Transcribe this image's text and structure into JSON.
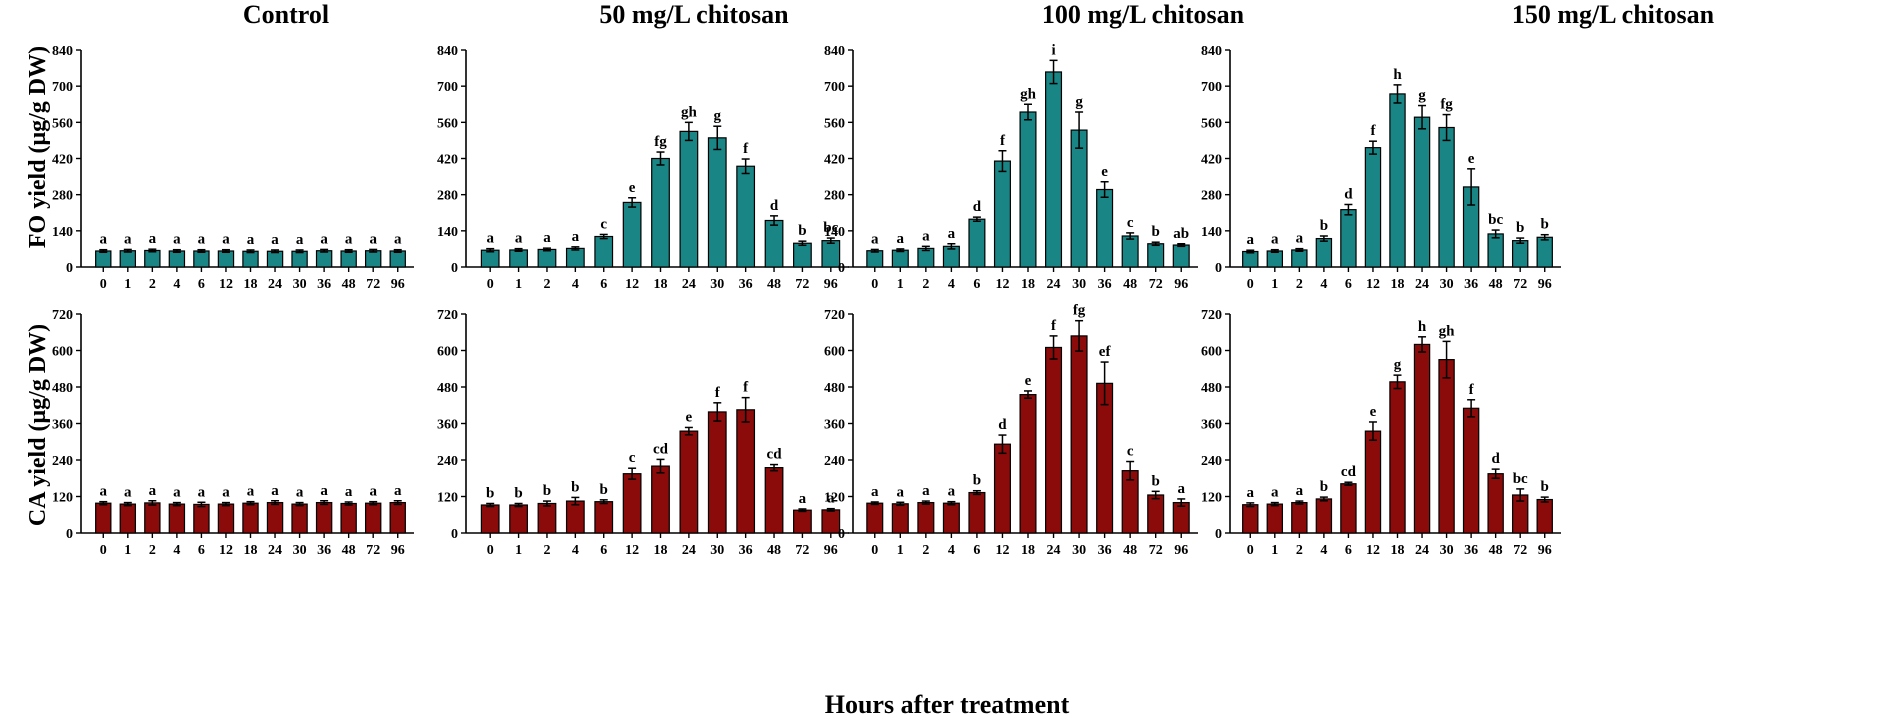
{
  "figure": {
    "column_titles": [
      "Control",
      "50 mg/L chitosan",
      "100 mg/L chitosan",
      "150 mg/L chitosan"
    ],
    "row_ylabels": [
      "FO yield (μg/g DW)",
      "CA yield (μg/g DW)"
    ],
    "shared_xlabel": "Hours after treatment",
    "colors": {
      "FO": "#1a8585",
      "CA": "#8b0a0a"
    }
  },
  "chart_data": [
    {
      "id": "fo-control",
      "type": "bar",
      "row": 0,
      "col": 0,
      "series": "FO",
      "title": "Control",
      "categories": [
        "0",
        "1",
        "2",
        "4",
        "6",
        "12",
        "18",
        "24",
        "30",
        "36",
        "48",
        "72",
        "96"
      ],
      "values": [
        62,
        63,
        64,
        62,
        62,
        62,
        61,
        61,
        61,
        63,
        62,
        63,
        62
      ],
      "errors": [
        5,
        5,
        5,
        5,
        5,
        5,
        5,
        5,
        5,
        5,
        5,
        5,
        5
      ],
      "labels": [
        "a",
        "a",
        "a",
        "a",
        "a",
        "a",
        "a",
        "a",
        "a",
        "a",
        "a",
        "a",
        "a"
      ],
      "ylim": [
        0,
        840
      ],
      "yticks": [
        0,
        140,
        280,
        420,
        560,
        700,
        840
      ]
    },
    {
      "id": "fo-50",
      "type": "bar",
      "row": 0,
      "col": 1,
      "series": "FO",
      "title": "50 mg/L chitosan",
      "categories": [
        "0",
        "1",
        "2",
        "4",
        "6",
        "12",
        "18",
        "24",
        "30",
        "36",
        "48",
        "72",
        "96"
      ],
      "values": [
        65,
        66,
        68,
        72,
        118,
        250,
        420,
        525,
        500,
        390,
        180,
        92,
        102
      ],
      "errors": [
        6,
        5,
        5,
        6,
        8,
        18,
        25,
        35,
        45,
        28,
        18,
        8,
        10
      ],
      "labels": [
        "a",
        "a",
        "a",
        "a",
        "c",
        "e",
        "fg",
        "gh",
        "g",
        "f",
        "d",
        "b",
        "bc"
      ],
      "ylim": [
        0,
        840
      ],
      "yticks": [
        0,
        140,
        280,
        420,
        560,
        700,
        840
      ]
    },
    {
      "id": "fo-100",
      "type": "bar",
      "row": 0,
      "col": 2,
      "series": "FO",
      "title": "100 mg/L chitosan",
      "categories": [
        "0",
        "1",
        "2",
        "4",
        "6",
        "12",
        "18",
        "24",
        "30",
        "36",
        "48",
        "72",
        "96"
      ],
      "values": [
        63,
        65,
        72,
        80,
        185,
        410,
        600,
        755,
        530,
        300,
        120,
        90,
        85
      ],
      "errors": [
        5,
        5,
        8,
        10,
        8,
        40,
        30,
        45,
        70,
        30,
        12,
        6,
        5
      ],
      "labels": [
        "a",
        "a",
        "a",
        "a",
        "d",
        "f",
        "gh",
        "i",
        "g",
        "e",
        "c",
        "b",
        "ab"
      ],
      "ylim": [
        0,
        840
      ],
      "yticks": [
        0,
        140,
        280,
        420,
        560,
        700,
        840
      ]
    },
    {
      "id": "fo-150",
      "type": "bar",
      "row": 0,
      "col": 3,
      "series": "FO",
      "title": "150 mg/L chitosan",
      "categories": [
        "0",
        "1",
        "2",
        "4",
        "6",
        "12",
        "18",
        "24",
        "30",
        "36",
        "48",
        "72",
        "96"
      ],
      "values": [
        60,
        62,
        66,
        110,
        222,
        462,
        670,
        580,
        540,
        310,
        128,
        102,
        115
      ],
      "errors": [
        5,
        5,
        5,
        10,
        20,
        25,
        35,
        45,
        50,
        70,
        15,
        10,
        10
      ],
      "labels": [
        "a",
        "a",
        "a",
        "b",
        "d",
        "f",
        "h",
        "g",
        "fg",
        "e",
        "bc",
        "b",
        "b"
      ],
      "ylim": [
        0,
        840
      ],
      "yticks": [
        0,
        140,
        280,
        420,
        560,
        700,
        840
      ]
    },
    {
      "id": "ca-control",
      "type": "bar",
      "row": 1,
      "col": 0,
      "series": "CA",
      "title": "Control",
      "categories": [
        "0",
        "1",
        "2",
        "4",
        "6",
        "12",
        "18",
        "24",
        "30",
        "36",
        "48",
        "72",
        "96"
      ],
      "values": [
        98,
        95,
        99,
        95,
        94,
        95,
        98,
        100,
        95,
        100,
        97,
        98,
        100
      ],
      "errors": [
        5,
        5,
        7,
        5,
        7,
        5,
        5,
        6,
        5,
        6,
        5,
        5,
        6
      ],
      "labels": [
        "a",
        "a",
        "a",
        "a",
        "a",
        "a",
        "a",
        "a",
        "a",
        "a",
        "a",
        "a",
        "a"
      ],
      "ylim": [
        0,
        720
      ],
      "yticks": [
        0,
        120,
        240,
        360,
        480,
        600,
        720
      ]
    },
    {
      "id": "ca-50",
      "type": "bar",
      "row": 1,
      "col": 1,
      "series": "CA",
      "title": "50 mg/L chitosan",
      "categories": [
        "0",
        "1",
        "2",
        "4",
        "6",
        "12",
        "18",
        "24",
        "30",
        "36",
        "48",
        "72",
        "96"
      ],
      "values": [
        92,
        92,
        97,
        105,
        103,
        195,
        220,
        335,
        398,
        405,
        215,
        75,
        76
      ],
      "errors": [
        5,
        5,
        8,
        12,
        6,
        18,
        22,
        12,
        30,
        40,
        10,
        4,
        4
      ],
      "labels": [
        "b",
        "b",
        "b",
        "b",
        "b",
        "c",
        "cd",
        "e",
        "f",
        "f",
        "cd",
        "a",
        "a"
      ],
      "ylim": [
        0,
        720
      ],
      "yticks": [
        0,
        120,
        240,
        360,
        480,
        600,
        720
      ]
    },
    {
      "id": "ca-100",
      "type": "bar",
      "row": 1,
      "col": 2,
      "series": "CA",
      "title": "100 mg/L chitosan",
      "categories": [
        "0",
        "1",
        "2",
        "4",
        "6",
        "12",
        "18",
        "24",
        "30",
        "36",
        "48",
        "72",
        "96"
      ],
      "values": [
        98,
        96,
        100,
        98,
        133,
        292,
        455,
        610,
        648,
        492,
        205,
        125,
        100
      ],
      "errors": [
        4,
        5,
        5,
        5,
        6,
        30,
        12,
        38,
        50,
        70,
        30,
        12,
        12
      ],
      "labels": [
        "a",
        "a",
        "a",
        "a",
        "b",
        "d",
        "e",
        "f",
        "fg",
        "ef",
        "c",
        "b",
        "a"
      ],
      "ylim": [
        0,
        720
      ],
      "yticks": [
        0,
        120,
        240,
        360,
        480,
        600,
        720
      ]
    },
    {
      "id": "ca-150",
      "type": "bar",
      "row": 1,
      "col": 3,
      "series": "CA",
      "title": "150 mg/L chitosan",
      "categories": [
        "0",
        "1",
        "2",
        "4",
        "6",
        "12",
        "18",
        "24",
        "30",
        "36",
        "48",
        "72",
        "96"
      ],
      "values": [
        93,
        95,
        100,
        112,
        162,
        335,
        497,
        620,
        570,
        410,
        195,
        125,
        110
      ],
      "errors": [
        6,
        5,
        5,
        6,
        5,
        30,
        22,
        25,
        60,
        28,
        15,
        20,
        8
      ],
      "labels": [
        "a",
        "a",
        "a",
        "b",
        "cd",
        "e",
        "g",
        "h",
        "gh",
        "f",
        "d",
        "bc",
        "b"
      ],
      "ylim": [
        0,
        720
      ],
      "yticks": [
        0,
        120,
        240,
        360,
        480,
        600,
        720
      ]
    }
  ]
}
